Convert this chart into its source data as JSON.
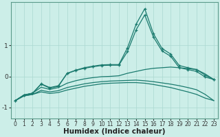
{
  "xlabel": "Humidex (Indice chaleur)",
  "x_values": [
    0,
    1,
    2,
    3,
    4,
    5,
    6,
    7,
    8,
    9,
    10,
    11,
    12,
    13,
    14,
    15,
    16,
    17,
    18,
    19,
    20,
    21,
    22,
    23
  ],
  "line1_y": [
    -0.78,
    -0.6,
    -0.55,
    -0.25,
    -0.38,
    -0.32,
    0.1,
    0.2,
    0.28,
    0.33,
    0.37,
    0.38,
    0.38,
    0.92,
    1.68,
    2.18,
    1.38,
    0.9,
    0.72,
    0.35,
    0.28,
    0.22,
    0.04,
    -0.1
  ],
  "line2_y": [
    -0.78,
    -0.6,
    -0.54,
    -0.24,
    -0.36,
    -0.3,
    0.09,
    0.19,
    0.26,
    0.31,
    0.35,
    0.36,
    0.36,
    0.8,
    1.5,
    1.98,
    1.27,
    0.82,
    0.65,
    0.28,
    0.22,
    0.16,
    -0.02,
    -0.1
  ],
  "line3_y": [
    -0.78,
    -0.6,
    -0.54,
    -0.35,
    -0.42,
    -0.36,
    -0.22,
    -0.14,
    -0.08,
    -0.04,
    -0.01,
    0.0,
    0.02,
    0.1,
    0.16,
    0.22,
    0.26,
    0.28,
    0.3,
    0.28,
    0.25,
    0.22,
    0.08,
    -0.1
  ],
  "line4_y": [
    -0.78,
    -0.63,
    -0.58,
    -0.45,
    -0.5,
    -0.46,
    -0.36,
    -0.3,
    -0.24,
    -0.2,
    -0.17,
    -0.15,
    -0.14,
    -0.13,
    -0.12,
    -0.14,
    -0.17,
    -0.21,
    -0.25,
    -0.3,
    -0.36,
    -0.43,
    -0.58,
    -0.78
  ],
  "line5_y": [
    -0.78,
    -0.63,
    -0.58,
    -0.5,
    -0.55,
    -0.52,
    -0.44,
    -0.38,
    -0.32,
    -0.28,
    -0.24,
    -0.22,
    -0.21,
    -0.2,
    -0.2,
    -0.22,
    -0.26,
    -0.31,
    -0.36,
    -0.43,
    -0.5,
    -0.58,
    -0.7,
    -0.78
  ],
  "ylim": [
    -1.35,
    2.4
  ],
  "xlim": [
    -0.5,
    23.5
  ],
  "yticks": [
    -1,
    0,
    1
  ],
  "xticks": [
    0,
    1,
    2,
    3,
    4,
    5,
    6,
    7,
    8,
    9,
    10,
    11,
    12,
    13,
    14,
    15,
    16,
    17,
    18,
    19,
    20,
    21,
    22,
    23
  ],
  "bg_color": "#cceee8",
  "grid_color": "#aad8d0",
  "line_color": "#1a7a6e",
  "tick_fontsize": 5.5,
  "xlabel_fontsize": 7.5
}
